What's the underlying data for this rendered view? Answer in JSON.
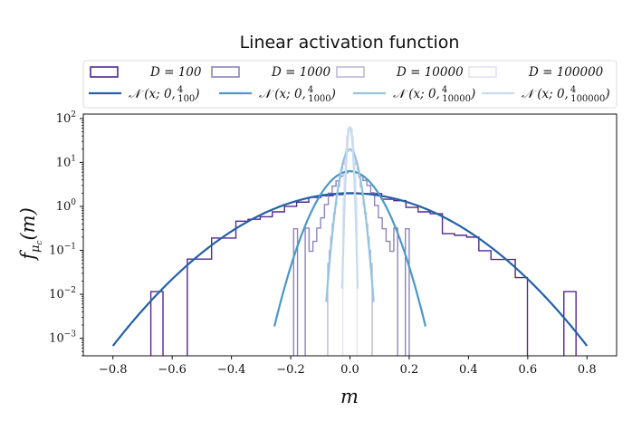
{
  "chart_data": {
    "type": "histogram+line",
    "title": "Linear activation function",
    "xlabel": "m",
    "ylabel": "f_{μ_c}(m)",
    "xlim": [
      -0.9,
      0.9
    ],
    "ylim_log10": [
      -3.4,
      2.1
    ],
    "yscale": "log",
    "xticks": [
      -0.8,
      -0.6,
      -0.4,
      -0.2,
      0.0,
      0.2,
      0.4,
      0.6,
      0.8
    ],
    "xtick_labels": [
      "−0.8",
      "−0.6",
      "−0.4",
      "−0.2",
      "0.0",
      "0.2",
      "0.4",
      "0.6",
      "0.8"
    ],
    "yticks": [
      {
        "base": "10",
        "exp": "2",
        "value": 2
      },
      {
        "base": "10",
        "exp": "1",
        "value": 1
      },
      {
        "base": "10",
        "exp": "0",
        "value": 0
      },
      {
        "base": "10",
        "exp": "−1",
        "value": -1
      },
      {
        "base": "10",
        "exp": "−2",
        "value": -2
      },
      {
        "base": "10",
        "exp": "−3",
        "value": -3
      }
    ],
    "legend": {
      "hist": [
        {
          "label": "D = 100",
          "color": "#54278f"
        },
        {
          "label": "D = 1000",
          "color": "#8c85bb"
        },
        {
          "label": "D = 10000",
          "color": "#bcb9d8"
        },
        {
          "label": "D = 100000",
          "color": "#e4e2ef"
        }
      ],
      "curves": [
        {
          "main": "𝒩 (x; 0,",
          "num": "4",
          "den": "100",
          "color": "#2361a8"
        },
        {
          "main": "𝒩 (x; 0,",
          "num": "4",
          "den": "1000",
          "color": "#4a98c9"
        },
        {
          "main": "𝒩 (x; 0,",
          "num": "4",
          "den": "10000",
          "color": "#94c4df"
        },
        {
          "main": "𝒩 (x; 0,",
          "num": "4",
          "den": "100000",
          "color": "#c6dbef"
        }
      ]
    },
    "histograms": [
      {
        "name": "D = 100",
        "color": "#54278f",
        "edges": [
          -0.672,
          -0.631,
          -0.59,
          -0.549,
          -0.508,
          -0.467,
          -0.426,
          -0.385,
          -0.344,
          -0.303,
          -0.262,
          -0.221,
          -0.18,
          -0.139,
          -0.098,
          -0.057,
          -0.016,
          0.025,
          0.066,
          0.107,
          0.148,
          0.189,
          0.23,
          0.271,
          0.312,
          0.353,
          0.394,
          0.435,
          0.476,
          0.517,
          0.558,
          0.599,
          0.64,
          0.681,
          0.722,
          0.763
        ],
        "counts": [
          0.0115,
          0,
          0,
          0.063,
          0.063,
          0.19,
          0.19,
          0.46,
          0.51,
          0.58,
          0.75,
          1.0,
          1.25,
          1.6,
          1.75,
          1.85,
          1.95,
          1.95,
          1.95,
          1.45,
          1.35,
          0.95,
          0.75,
          0.68,
          0.24,
          0.22,
          0.2,
          0.098,
          0.062,
          0.062,
          0.024,
          0,
          0,
          0,
          0.0115
        ]
      },
      {
        "name": "D = 1000",
        "color": "#8c85bb",
        "edges": [
          -0.19,
          -0.177,
          -0.164,
          -0.151,
          -0.138,
          -0.125,
          -0.112,
          -0.099,
          -0.086,
          -0.073,
          -0.06,
          -0.047,
          -0.034,
          -0.021,
          -0.008,
          0.005,
          0.018,
          0.031,
          0.044,
          0.057,
          0.07,
          0.083,
          0.096,
          0.109,
          0.122,
          0.135,
          0.148,
          0.161,
          0.174,
          0.187,
          0.2
        ],
        "counts": [
          0.31,
          0.0,
          0.0,
          0.32,
          0.095,
          0.16,
          0.32,
          0.55,
          1.1,
          2.0,
          2.9,
          3.8,
          4.9,
          5.8,
          6.2,
          6.1,
          5.8,
          4.9,
          3.9,
          3.0,
          2.05,
          1.05,
          0.55,
          0.31,
          0.16,
          0.095,
          0.32,
          0.0,
          0.0,
          0.31
        ]
      },
      {
        "name": "D = 10000",
        "color": "#bcb9d8",
        "edges": [
          -0.075,
          -0.07,
          -0.065,
          -0.06,
          -0.055,
          -0.05,
          -0.045,
          -0.04,
          -0.035,
          -0.03,
          -0.025,
          -0.02,
          -0.015,
          -0.01,
          -0.005,
          0.0,
          0.005,
          0.01,
          0.015,
          0.02,
          0.025,
          0.03,
          0.035,
          0.04,
          0.045,
          0.05,
          0.055,
          0.06,
          0.065,
          0.07,
          0.075
        ],
        "counts": [
          0.05,
          0.1,
          0.2,
          0.4,
          0.7,
          1.1,
          1.8,
          2.8,
          4.5,
          6.8,
          9.0,
          12.0,
          15.0,
          18.0,
          19.5,
          19.5,
          18.0,
          15.0,
          12.0,
          9.0,
          6.8,
          4.5,
          2.8,
          1.8,
          1.1,
          0.7,
          0.4,
          0.2,
          0.1,
          0.05
        ]
      },
      {
        "name": "D = 100000",
        "color": "#e4e2ef",
        "edges": [
          -0.024,
          -0.02,
          -0.016,
          -0.012,
          -0.008,
          -0.004,
          0.0,
          0.004,
          0.008,
          0.012,
          0.016,
          0.02,
          0.024
        ],
        "counts": [
          1.5,
          6.0,
          20.0,
          40.0,
          58.0,
          63.0,
          63.0,
          58.0,
          40.0,
          20.0,
          6.0,
          1.5
        ]
      }
    ],
    "curves": [
      {
        "name": "N(x; 0, 4/100)",
        "color": "#2361a8",
        "variance": 0.04,
        "x_range": [
          -0.8,
          0.8
        ]
      },
      {
        "name": "N(x; 0, 4/1000)",
        "color": "#4a98c9",
        "variance": 0.004,
        "x_range": [
          -0.255,
          0.255
        ]
      },
      {
        "name": "N(x; 0, 4/10000)",
        "color": "#94c4df",
        "variance": 0.0004,
        "x_range": [
          -0.08,
          0.08
        ]
      },
      {
        "name": "N(x; 0, 4/100000)",
        "color": "#c6dbef",
        "variance": 4e-05,
        "x_range": [
          -0.026,
          0.026
        ]
      }
    ]
  }
}
